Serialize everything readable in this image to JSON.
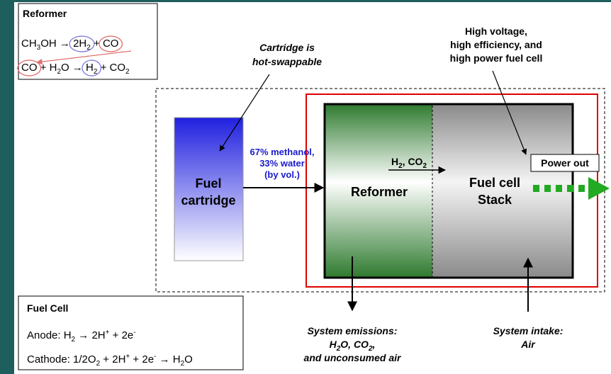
{
  "reformer_box": {
    "title": "Reformer",
    "equations": [
      [
        {
          "text": "CH",
          "sub": "3"
        },
        {
          "text": "OH → "
        },
        {
          "text": "2H",
          "sub": "2",
          "ring": "#7070d8"
        },
        {
          "text": " + "
        },
        {
          "text": "CO",
          "ring": "#e06060"
        }
      ],
      [
        {
          "text": "CO",
          "ring": "#e06060"
        },
        {
          "text": " + H",
          "sub": "2"
        },
        {
          "text": "O → "
        },
        {
          "text": "H",
          "sub": "2",
          "ring": "#7070d8"
        },
        {
          "text": " + CO",
          "sub": "2"
        }
      ]
    ]
  },
  "fuel_cell_box": {
    "title": "Fuel Cell",
    "equations": [
      [
        {
          "text": "Anode: H",
          "sub": "2"
        },
        {
          "text": " → 2H",
          "sup": "+"
        },
        {
          "text": " + 2e",
          "sup": "-"
        }
      ],
      [
        {
          "text": "Cathode: 1/2O",
          "sub": "2"
        },
        {
          "text": " + 2H",
          "sup": "+"
        },
        {
          "text": " + 2e",
          "sup": "-"
        },
        {
          "text": " → H",
          "sub": "2"
        },
        {
          "text": "O"
        }
      ]
    ]
  },
  "cartridge_note": [
    "Cartridge is",
    "hot-swappable"
  ],
  "stack_note": [
    "High voltage,",
    "high efficiency, and",
    "high power fuel cell"
  ],
  "fuel_cartridge": [
    "Fuel",
    "cartridge"
  ],
  "feed_label": [
    "67% methanol,",
    "33% water",
    "(by vol.)"
  ],
  "reformer": "Reformer",
  "gas_label": [
    {
      "text": "H",
      "sub": "2"
    },
    {
      "text": ", CO",
      "sub": "2"
    }
  ],
  "stack": [
    "Fuel cell",
    "Stack"
  ],
  "power_out": "Power out",
  "emissions": [
    "System emissions:",
    [
      {
        "text": "H",
        "sub": "2"
      },
      {
        "text": "O, CO",
        "sub": "2"
      },
      {
        "text": ","
      }
    ],
    "and unconsumed air"
  ],
  "intake": [
    "System intake:",
    "Air"
  ]
}
